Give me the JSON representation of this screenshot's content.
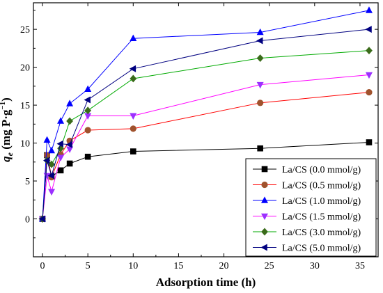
{
  "chart_data": {
    "type": "line",
    "xlabel": "Adsorption time (h)",
    "ylabel": "q",
    "ylabel_sub": "e",
    "ylabel_units": " (mg P·g",
    "ylabel_sup": "−1",
    "ylabel_close": ")",
    "xlim": [
      -1,
      37
    ],
    "ylim": [
      -5,
      28.5
    ],
    "x_ticks": [
      0,
      5,
      10,
      15,
      20,
      25,
      30,
      35
    ],
    "y_ticks": [
      0,
      5,
      10,
      15,
      20,
      25
    ],
    "x": [
      0,
      0.5,
      1,
      2,
      3,
      5,
      10,
      24,
      36
    ],
    "legend_position": "bottom-right",
    "series": [
      {
        "name": "La/CS (0.0 mmol/g)",
        "marker": "square",
        "color": "#000000",
        "marker_color": "#000000",
        "values": [
          0,
          8.4,
          5.6,
          6.4,
          7.3,
          8.2,
          8.9,
          9.3,
          10.1
        ]
      },
      {
        "name": "La/CS (0.5 mmol/g)",
        "marker": "circle",
        "color": "#ff0000",
        "marker_color": "#a0522d",
        "values": [
          0,
          8.4,
          5.5,
          8.5,
          10.3,
          11.7,
          11.9,
          15.3,
          16.7
        ]
      },
      {
        "name": "La/CS (1.0 mmol/g)",
        "marker": "triangle-up",
        "color": "#0000ff",
        "marker_color": "#0000ff",
        "values": [
          0,
          10.4,
          9.0,
          12.9,
          15.2,
          17.1,
          23.8,
          24.6,
          27.5
        ]
      },
      {
        "name": "La/CS (1.5 mmol/g)",
        "marker": "triangle-down",
        "color": "#ff00ff",
        "marker_color": "#9b30ff",
        "values": [
          0,
          5.7,
          3.6,
          8.1,
          9.2,
          13.6,
          13.6,
          17.7,
          19.0
        ]
      },
      {
        "name": "La/CS (3.0 mmol/g)",
        "marker": "diamond",
        "color": "#00aa00",
        "marker_color": "#3a6b1a",
        "values": [
          0,
          7.7,
          7.2,
          9.3,
          12.9,
          14.3,
          18.5,
          21.2,
          22.2
        ]
      },
      {
        "name": "La/CS (5.0 mmol/g)",
        "marker": "triangle-left",
        "color": "#000080",
        "marker_color": "#000080",
        "values": [
          0,
          7.7,
          5.7,
          9.9,
          9.8,
          15.7,
          19.8,
          23.5,
          25.0
        ]
      }
    ]
  }
}
